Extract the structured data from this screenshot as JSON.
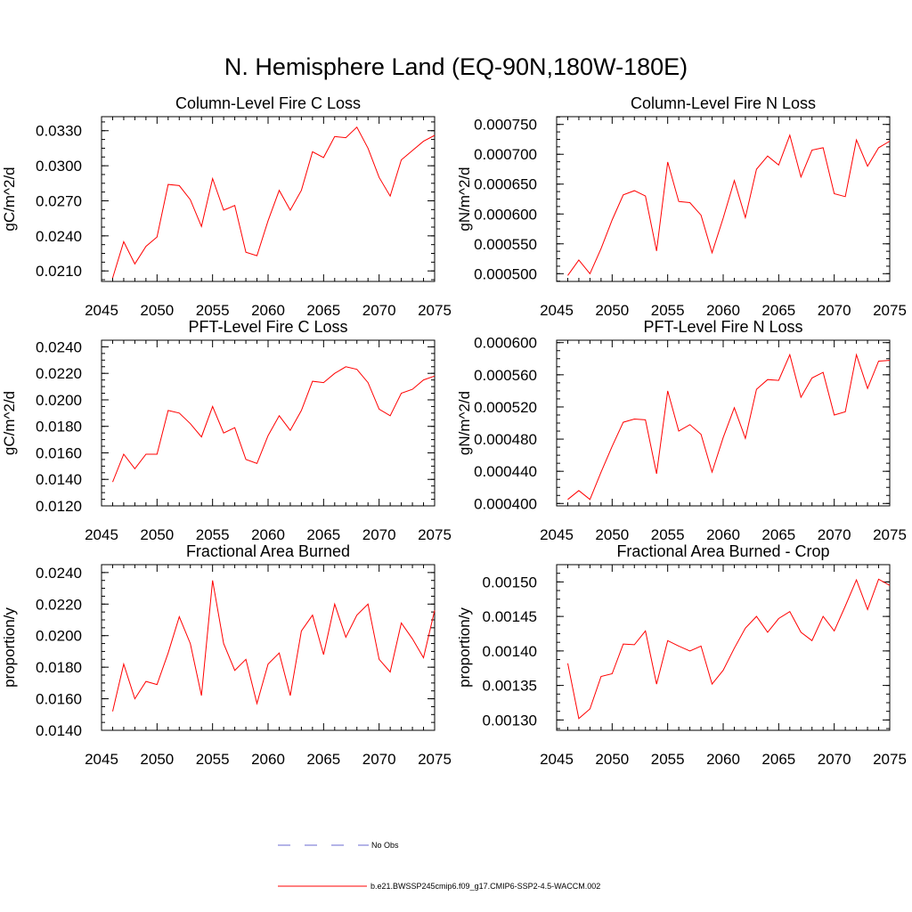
{
  "figure_title": "N. Hemisphere Land (EQ-90N,180W-180E)",
  "colors": {
    "model": "#ff0000",
    "obs": "#6a6ad2",
    "axis": "#000000"
  },
  "legend": {
    "obs_label": "No Obs",
    "model_label": "b.e21.BWSSP245cmip6.f09_g17.CMIP6-SSP2-4.5-WACCM.002"
  },
  "chart_data": [
    {
      "type": "line",
      "title": "Column-Level Fire C Loss",
      "ylabel": "gC/m^2/d",
      "xlim": [
        2045,
        2075
      ],
      "ylim": [
        0.0201,
        0.0342
      ],
      "xticks": [
        2045,
        2050,
        2055,
        2060,
        2065,
        2070,
        2075
      ],
      "yticks": [
        0.021,
        0.024,
        0.027,
        0.03,
        0.033
      ],
      "ytick_labels": [
        "0.0210",
        "0.0240",
        "0.0270",
        "0.0300",
        "0.0330"
      ],
      "series": [
        {
          "name": "b.e21.BWSSP245cmip6.f09_g17.CMIP6-SSP2-4.5-WACCM.002",
          "x": [
            2046,
            2047,
            2048,
            2049,
            2050,
            2051,
            2052,
            2053,
            2054,
            2055,
            2056,
            2057,
            2058,
            2059,
            2060,
            2061,
            2062,
            2063,
            2064,
            2065,
            2066,
            2067,
            2068,
            2069,
            2070,
            2071,
            2072,
            2073,
            2074,
            2075
          ],
          "y": [
            0.0204,
            0.0235,
            0.0216,
            0.0231,
            0.0239,
            0.0284,
            0.0283,
            0.0271,
            0.0248,
            0.0289,
            0.0262,
            0.0266,
            0.0226,
            0.0223,
            0.0253,
            0.0279,
            0.0262,
            0.0279,
            0.0312,
            0.0307,
            0.0325,
            0.0324,
            0.0333,
            0.0315,
            0.029,
            0.0274,
            0.0305,
            0.0313,
            0.0321,
            0.0326
          ]
        }
      ]
    },
    {
      "type": "line",
      "title": "Column-Level Fire N Loss",
      "ylabel": "gN/m^2/d",
      "xlim": [
        2045,
        2075
      ],
      "ylim": [
        0.000487,
        0.000763
      ],
      "xticks": [
        2045,
        2050,
        2055,
        2060,
        2065,
        2070,
        2075
      ],
      "yticks": [
        0.0005,
        0.00055,
        0.0006,
        0.00065,
        0.0007,
        0.00075
      ],
      "ytick_labels": [
        "0.000500",
        "0.000550",
        "0.000600",
        "0.000650",
        "0.000700",
        "0.000750"
      ],
      "series": [
        {
          "name": "b.e21.BWSSP245cmip6.f09_g17.CMIP6-SSP2-4.5-WACCM.002",
          "x": [
            2046,
            2047,
            2048,
            2049,
            2050,
            2051,
            2052,
            2053,
            2054,
            2055,
            2056,
            2057,
            2058,
            2059,
            2060,
            2061,
            2062,
            2063,
            2064,
            2065,
            2066,
            2067,
            2068,
            2069,
            2070,
            2071,
            2072,
            2073,
            2074,
            2075
          ],
          "y": [
            0.000497,
            0.000523,
            0.0005,
            0.000542,
            0.00059,
            0.000632,
            0.000639,
            0.00063,
            0.000538,
            0.000687,
            0.000621,
            0.000619,
            0.000598,
            0.000535,
            0.000593,
            0.000656,
            0.000594,
            0.000675,
            0.000697,
            0.000682,
            0.000732,
            0.000662,
            0.000707,
            0.000711,
            0.000634,
            0.000629,
            0.000724,
            0.00068,
            0.000711,
            0.000722
          ]
        }
      ]
    },
    {
      "type": "line",
      "title": "PFT-Level Fire C Loss",
      "ylabel": "gC/m^2/d",
      "xlim": [
        2045,
        2075
      ],
      "ylim": [
        0.012,
        0.0245
      ],
      "xticks": [
        2045,
        2050,
        2055,
        2060,
        2065,
        2070,
        2075
      ],
      "yticks": [
        0.012,
        0.014,
        0.016,
        0.018,
        0.02,
        0.022,
        0.024
      ],
      "ytick_labels": [
        "0.0120",
        "0.0140",
        "0.0160",
        "0.0180",
        "0.0200",
        "0.0220",
        "0.0240"
      ],
      "series": [
        {
          "name": "b.e21.BWSSP245cmip6.f09_g17.CMIP6-SSP2-4.5-WACCM.002",
          "x": [
            2046,
            2047,
            2048,
            2049,
            2050,
            2051,
            2052,
            2053,
            2054,
            2055,
            2056,
            2057,
            2058,
            2059,
            2060,
            2061,
            2062,
            2063,
            2064,
            2065,
            2066,
            2067,
            2068,
            2069,
            2070,
            2071,
            2072,
            2073,
            2074,
            2075
          ],
          "y": [
            0.0138,
            0.0159,
            0.0148,
            0.0159,
            0.0159,
            0.0192,
            0.019,
            0.0182,
            0.0172,
            0.0195,
            0.0175,
            0.0179,
            0.0155,
            0.0152,
            0.0173,
            0.0188,
            0.0177,
            0.0192,
            0.0214,
            0.0213,
            0.022,
            0.0225,
            0.0223,
            0.0213,
            0.0193,
            0.0188,
            0.0205,
            0.0208,
            0.0215,
            0.0218
          ]
        }
      ]
    },
    {
      "type": "line",
      "title": "PFT-Level Fire N Loss",
      "ylabel": "gN/m^2/d",
      "xlim": [
        2045,
        2075
      ],
      "ylim": [
        0.000397,
        0.000603
      ],
      "xticks": [
        2045,
        2050,
        2055,
        2060,
        2065,
        2070,
        2075
      ],
      "yticks": [
        0.0004,
        0.00044,
        0.00048,
        0.00052,
        0.00056,
        0.0006
      ],
      "ytick_labels": [
        "0.000400",
        "0.000440",
        "0.000480",
        "0.000520",
        "0.000560",
        "0.000600"
      ],
      "series": [
        {
          "name": "b.e21.BWSSP245cmip6.f09_g17.CMIP6-SSP2-4.5-WACCM.002",
          "x": [
            2046,
            2047,
            2048,
            2049,
            2050,
            2051,
            2052,
            2053,
            2054,
            2055,
            2056,
            2057,
            2058,
            2059,
            2060,
            2061,
            2062,
            2063,
            2064,
            2065,
            2066,
            2067,
            2068,
            2069,
            2070,
            2071,
            2072,
            2073,
            2074,
            2075
          ],
          "y": [
            0.000405,
            0.000416,
            0.000405,
            0.000439,
            0.000471,
            0.000501,
            0.000505,
            0.000504,
            0.000437,
            0.00054,
            0.00049,
            0.000498,
            0.000486,
            0.000439,
            0.000482,
            0.000519,
            0.000481,
            0.000542,
            0.000554,
            0.000553,
            0.000585,
            0.000532,
            0.000556,
            0.000563,
            0.00051,
            0.000514,
            0.000585,
            0.000543,
            0.000577,
            0.000578
          ]
        }
      ]
    },
    {
      "type": "line",
      "title": "Fractional Area Burned",
      "ylabel": "proportion/y",
      "xlim": [
        2045,
        2075
      ],
      "ylim": [
        0.014,
        0.0245
      ],
      "xticks": [
        2045,
        2050,
        2055,
        2060,
        2065,
        2070,
        2075
      ],
      "yticks": [
        0.014,
        0.016,
        0.018,
        0.02,
        0.022,
        0.024
      ],
      "ytick_labels": [
        "0.0140",
        "0.0160",
        "0.0180",
        "0.0200",
        "0.0220",
        "0.0240"
      ],
      "series": [
        {
          "name": "b.e21.BWSSP245cmip6.f09_g17.CMIP6-SSP2-4.5-WACCM.002",
          "x": [
            2046,
            2047,
            2048,
            2049,
            2050,
            2051,
            2052,
            2053,
            2054,
            2055,
            2056,
            2057,
            2058,
            2059,
            2060,
            2061,
            2062,
            2063,
            2064,
            2065,
            2066,
            2067,
            2068,
            2069,
            2070,
            2071,
            2072,
            2073,
            2074,
            2075
          ],
          "y": [
            0.0152,
            0.0182,
            0.016,
            0.0171,
            0.0169,
            0.0189,
            0.0212,
            0.0195,
            0.0162,
            0.0235,
            0.0195,
            0.0178,
            0.0185,
            0.0157,
            0.0182,
            0.0189,
            0.0162,
            0.0203,
            0.0213,
            0.0188,
            0.022,
            0.0199,
            0.0213,
            0.022,
            0.0185,
            0.0177,
            0.0208,
            0.0198,
            0.0186,
            0.0216
          ]
        }
      ]
    },
    {
      "type": "line",
      "title": "Fractional Area Burned - Crop",
      "ylabel": "proportion/y",
      "xlim": [
        2045,
        2075
      ],
      "ylim": [
        0.001285,
        0.001525
      ],
      "xticks": [
        2045,
        2050,
        2055,
        2060,
        2065,
        2070,
        2075
      ],
      "yticks": [
        0.0013,
        0.00135,
        0.0014,
        0.00145,
        0.0015
      ],
      "ytick_labels": [
        "0.00130",
        "0.00135",
        "0.00140",
        "0.00145",
        "0.00150"
      ],
      "series": [
        {
          "name": "b.e21.BWSSP245cmip6.f09_g17.CMIP6-SSP2-4.5-WACCM.002",
          "x": [
            2046,
            2047,
            2048,
            2049,
            2050,
            2051,
            2052,
            2053,
            2054,
            2055,
            2056,
            2057,
            2058,
            2059,
            2060,
            2061,
            2062,
            2063,
            2064,
            2065,
            2066,
            2067,
            2068,
            2069,
            2070,
            2071,
            2072,
            2073,
            2074,
            2075
          ],
          "y": [
            0.001382,
            0.001302,
            0.001316,
            0.001363,
            0.001367,
            0.00141,
            0.001409,
            0.001429,
            0.001352,
            0.001415,
            0.001407,
            0.0014,
            0.001407,
            0.001352,
            0.001372,
            0.001404,
            0.001433,
            0.00145,
            0.001427,
            0.001447,
            0.001457,
            0.001427,
            0.001415,
            0.00145,
            0.001429,
            0.001465,
            0.001503,
            0.00146,
            0.001504,
            0.001495
          ]
        }
      ]
    }
  ]
}
